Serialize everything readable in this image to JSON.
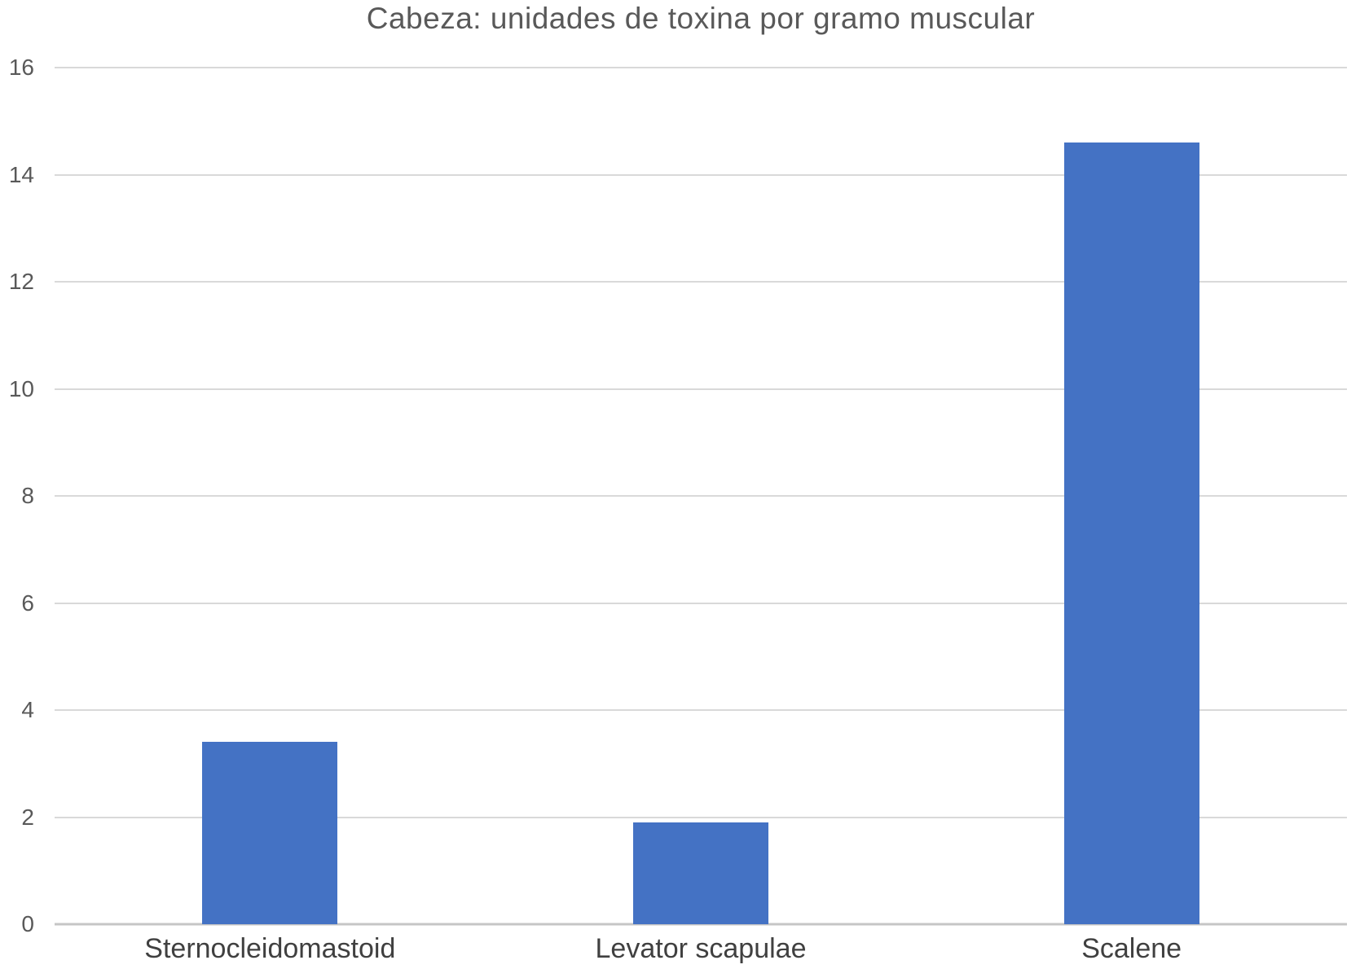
{
  "chart_data": {
    "type": "bar",
    "title": "Cabeza: unidades de toxina por gramo muscular",
    "categories": [
      "Sternocleidomastoid",
      "Levator scapulae",
      "Scalene"
    ],
    "values": [
      3.4,
      1.9,
      14.6
    ],
    "xlabel": "",
    "ylabel": "",
    "ylim": [
      0,
      16
    ],
    "yticks": [
      0,
      2,
      4,
      6,
      8,
      10,
      12,
      14,
      16
    ],
    "grid": true,
    "legend": false,
    "bar_color": "#4472c4",
    "gridline_color": "#d9d9d9",
    "baseline_color": "#c6c6c6",
    "title_color": "#595959",
    "tick_label_color": "#595959",
    "category_label_color": "#404040",
    "background_color": "#ffffff"
  }
}
